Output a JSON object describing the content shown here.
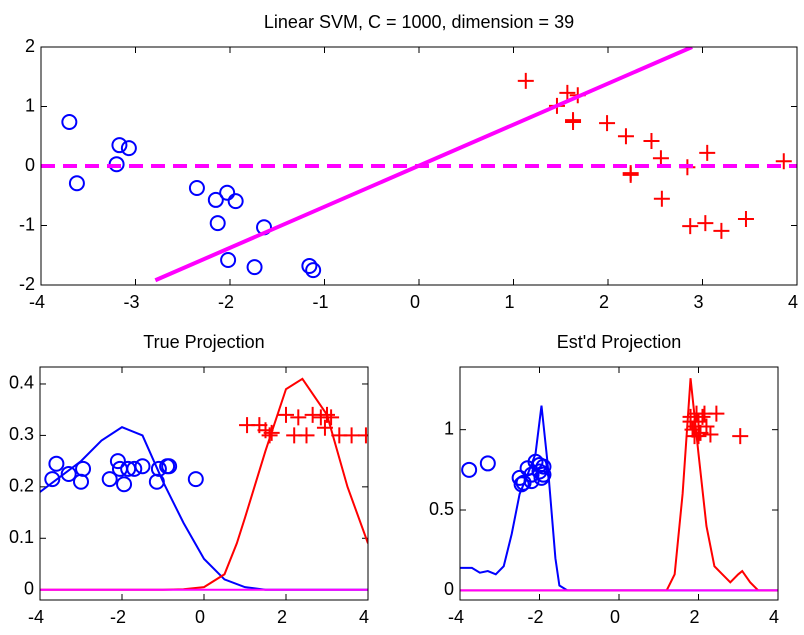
{
  "chart_data": [
    {
      "type": "scatter",
      "title": "Linear SVM, C = 1000, dimension = 39",
      "xlim": [
        -4,
        4
      ],
      "ylim": [
        -2,
        2
      ],
      "xticks": [
        -4,
        -3,
        -2,
        -1,
        0,
        1,
        2,
        3,
        4
      ],
      "yticks": [
        -2,
        -1,
        0,
        1,
        2
      ],
      "series": [
        {
          "color": "#0000ff",
          "marker": "o",
          "x": [
            -3.7,
            -3.62,
            -3.17,
            -3.07,
            -3.2,
            -2.35,
            -2.15,
            -2.03,
            -1.94,
            -2.13,
            -2.02,
            -1.64,
            -1.74,
            -1.16,
            -1.12
          ],
          "values": [
            0.74,
            -0.29,
            0.35,
            0.3,
            0.03,
            -0.37,
            -0.57,
            -0.45,
            -0.59,
            -0.96,
            -1.58,
            -1.03,
            -1.7,
            -1.68,
            -1.75
          ]
        },
        {
          "color": "#ff0000",
          "marker": "+",
          "x": [
            1.13,
            1.46,
            1.57,
            1.68,
            1.63,
            1.63,
            1.99,
            2.19,
            2.46,
            2.56,
            2.24,
            2.24,
            2.57,
            2.84,
            3.05,
            2.87,
            3.03,
            3.2,
            3.46,
            3.86
          ],
          "values": [
            1.43,
            1.01,
            1.23,
            1.19,
            0.77,
            0.74,
            0.72,
            0.5,
            0.42,
            0.13,
            -0.12,
            -0.15,
            -0.55,
            -0.02,
            0.22,
            -1.01,
            -0.96,
            -1.09,
            -0.89,
            0.08
          ]
        },
        {
          "color": "#ff00ff",
          "line": "solid",
          "x": [
            -2.79,
            2.89
          ],
          "values": [
            -1.92,
            2.0
          ]
        },
        {
          "color": "#ff00ff",
          "line": "dashed",
          "x": [
            -4,
            4
          ],
          "values": [
            0,
            0
          ]
        }
      ]
    },
    {
      "type": "scatter",
      "title": "True Projection",
      "xlim": [
        -4,
        4
      ],
      "ylim": [
        -0.02,
        0.433
      ],
      "xticks": [
        -4,
        -2,
        0,
        2,
        4
      ],
      "yticks": [
        0,
        0.1,
        0.2,
        0.3,
        0.4
      ],
      "series": [
        {
          "color": "#0000ff",
          "line": "solid",
          "x": [
            -4,
            -3.5,
            -3,
            -2.5,
            -2,
            -1.5,
            -1,
            -0.5,
            0,
            0.5,
            1,
            1.5,
            2,
            3,
            4
          ],
          "values": [
            0.19,
            0.22,
            0.25,
            0.29,
            0.316,
            0.3,
            0.21,
            0.13,
            0.06,
            0.02,
            0.005,
            0,
            0,
            0,
            0
          ]
        },
        {
          "color": "#ff0000",
          "line": "solid",
          "x": [
            -4,
            -1,
            -0.5,
            0,
            0.5,
            0.8,
            1,
            1.5,
            2,
            2.4,
            3,
            3.5,
            4
          ],
          "values": [
            0,
            0,
            0.001,
            0.005,
            0.03,
            0.09,
            0.14,
            0.27,
            0.39,
            0.41,
            0.34,
            0.2,
            0.09
          ]
        },
        {
          "color": "#ff00ff",
          "line": "solid",
          "x": [
            -4,
            4
          ],
          "values": [
            0,
            0
          ]
        },
        {
          "color": "#0000ff",
          "marker": "o",
          "x": [
            -3.7,
            -3.6,
            -3.3,
            -3.0,
            -2.95,
            -2.3,
            -2.1,
            -2.05,
            -1.95,
            -1.85,
            -1.7,
            -1.5,
            -1.15,
            -1.1,
            -0.9,
            -0.85,
            -0.2
          ],
          "values": [
            0.215,
            0.245,
            0.225,
            0.21,
            0.235,
            0.215,
            0.25,
            0.235,
            0.205,
            0.235,
            0.235,
            0.24,
            0.21,
            0.235,
            0.24,
            0.24,
            0.215
          ]
        },
        {
          "color": "#ff0000",
          "marker": "+",
          "x": [
            1.05,
            1.35,
            1.5,
            1.6,
            1.65,
            2.0,
            2.2,
            2.3,
            2.5,
            2.65,
            2.85,
            2.95,
            3.0,
            3.1,
            3.3,
            3.6,
            3.95
          ],
          "values": [
            0.32,
            0.32,
            0.31,
            0.3,
            0.305,
            0.34,
            0.3,
            0.335,
            0.3,
            0.34,
            0.335,
            0.315,
            0.34,
            0.335,
            0.3,
            0.3,
            0.3
          ]
        }
      ]
    },
    {
      "type": "scatter",
      "title": "Est'd Projection",
      "xlim": [
        -4,
        4
      ],
      "ylim": [
        -0.06,
        1.39
      ],
      "xticks": [
        -4,
        -2,
        0,
        2,
        4
      ],
      "yticks": [
        0,
        0.5,
        1
      ],
      "series": [
        {
          "color": "#0000ff",
          "line": "solid",
          "x": [
            -4,
            -3.7,
            -3.5,
            -3.3,
            -3.1,
            -2.9,
            -2.7,
            -2.5,
            -2.3,
            -2.1,
            -1.95,
            -1.8,
            -1.6,
            -1.5,
            -1.3,
            4
          ],
          "values": [
            0.14,
            0.14,
            0.11,
            0.12,
            0.1,
            0.15,
            0.35,
            0.6,
            0.72,
            0.85,
            1.15,
            0.8,
            0.2,
            0.03,
            0,
            0
          ]
        },
        {
          "color": "#ff0000",
          "line": "solid",
          "x": [
            -4,
            1.2,
            1.4,
            1.6,
            1.8,
            2.0,
            2.2,
            2.4,
            2.6,
            2.8,
            3.0,
            3.1,
            3.3,
            3.5,
            4
          ],
          "values": [
            0,
            0,
            0.1,
            0.6,
            1.32,
            0.85,
            0.4,
            0.15,
            0.1,
            0.05,
            0.1,
            0.12,
            0.05,
            0,
            0
          ]
        },
        {
          "color": "#ff00ff",
          "line": "solid",
          "x": [
            -4,
            4
          ],
          "values": [
            0,
            0
          ]
        },
        {
          "color": "#0000ff",
          "marker": "o",
          "x": [
            -3.77,
            -3.3,
            -2.5,
            -2.4,
            -2.3,
            -2.2,
            -2.1,
            -2.0,
            -1.95,
            -1.9,
            -2.45,
            -2.2,
            -2.0,
            -1.9
          ],
          "values": [
            0.75,
            0.79,
            0.7,
            0.67,
            0.76,
            0.72,
            0.8,
            0.74,
            0.7,
            0.77,
            0.66,
            0.68,
            0.78,
            0.72
          ]
        },
        {
          "color": "#ff0000",
          "marker": "+",
          "x": [
            1.8,
            1.85,
            1.9,
            2.0,
            2.05,
            2.1,
            2.2,
            2.3,
            1.8,
            1.95,
            2.15,
            2.45,
            3.05,
            2.0,
            1.9
          ],
          "values": [
            1.08,
            1.0,
            0.96,
            1.05,
            0.98,
            1.08,
            1.02,
            0.97,
            1.05,
            1.1,
            1.1,
            1.1,
            0.96,
            0.96,
            1.02
          ]
        }
      ]
    }
  ]
}
